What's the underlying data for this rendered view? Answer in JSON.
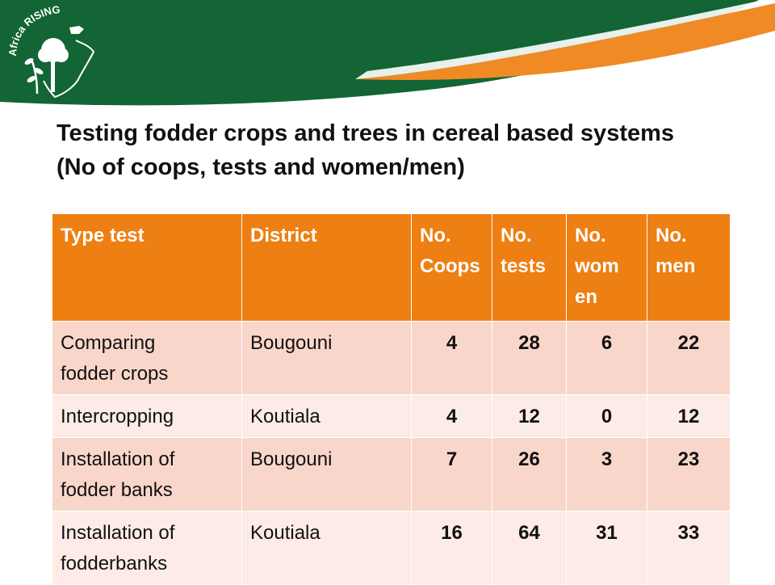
{
  "banner": {
    "logo_text": "Africa RISING",
    "colors": {
      "green": "#136535",
      "orange": "#F08A24"
    }
  },
  "slide": {
    "title": "Testing fodder crops and trees in cereal based systems (No of coops, tests and women/men)"
  },
  "table": {
    "headers": [
      {
        "line1": "Type test",
        "line2": "",
        "line3": ""
      },
      {
        "line1": "District",
        "line2": "",
        "line3": ""
      },
      {
        "line1": "No.",
        "line2": "Coops",
        "line3": ""
      },
      {
        "line1": "No.",
        "line2": "tests",
        "line3": ""
      },
      {
        "line1": "No.",
        "line2": "wom",
        "line3": "en"
      },
      {
        "line1": "No.",
        "line2": "men",
        "line3": ""
      }
    ],
    "rows": [
      {
        "type_line1": "Comparing",
        "type_line2": "fodder crops",
        "district": "Bougouni",
        "coops": "4",
        "tests": "28",
        "women": "6",
        "men": "22"
      },
      {
        "type_line1": "Intercropping",
        "type_line2": "",
        "district": "Koutiala",
        "coops": "4",
        "tests": "12",
        "women": "0",
        "men": "12"
      },
      {
        "type_line1": "Installation of",
        "type_line2": "fodder banks",
        "district": "Bougouni",
        "coops": "7",
        "tests": "26",
        "women": "3",
        "men": "23"
      },
      {
        "type_line1": "Installation of",
        "type_line2": "fodderbanks",
        "district": "Koutiala",
        "coops": "16",
        "tests": "64",
        "women": "31",
        "men": "33"
      }
    ]
  }
}
